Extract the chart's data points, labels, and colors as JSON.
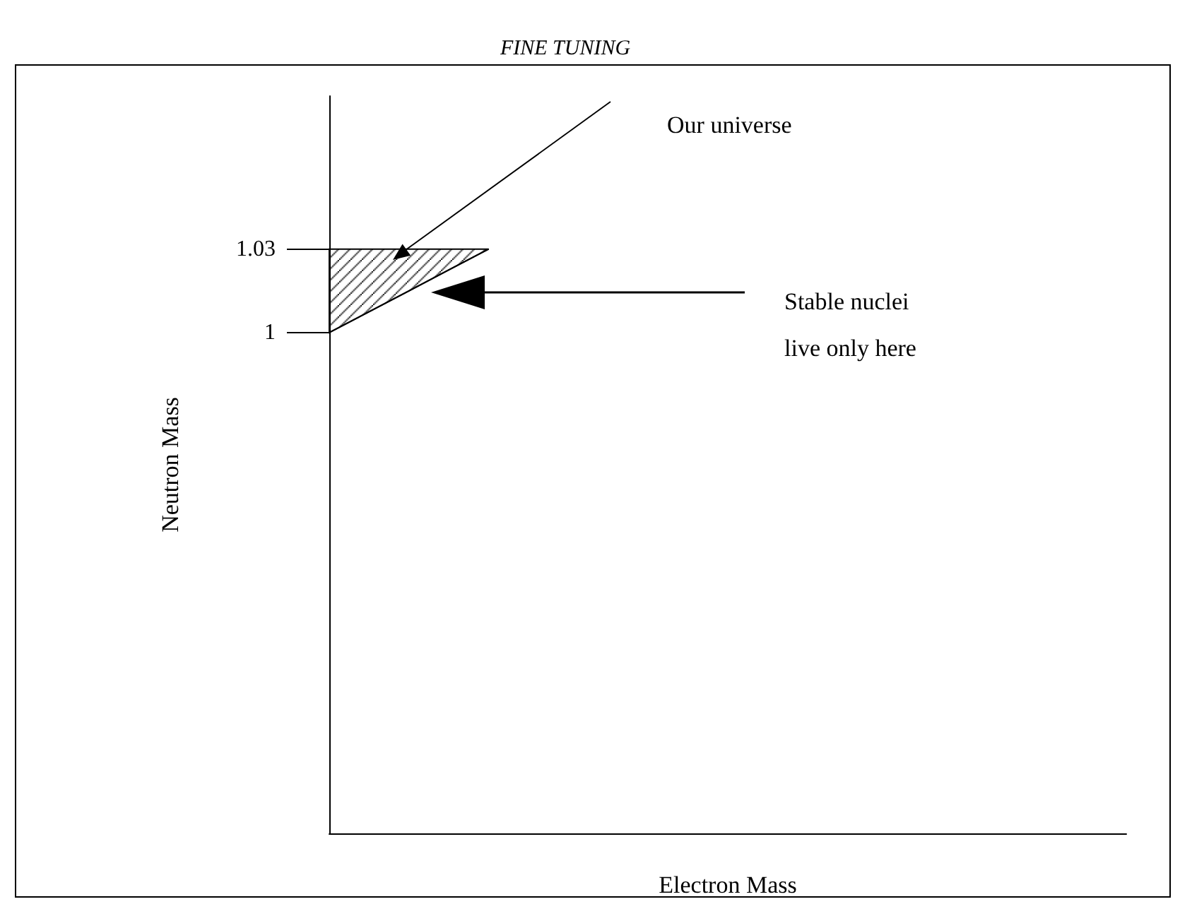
{
  "chart_data": {
    "type": "line",
    "title": "FINE TUNING",
    "xlabel": "Electron Mass",
    "ylabel": "Neutron Mass",
    "categories": [
      null,
      null,
      null,
      null,
      null,
      null,
      null,
      null,
      null,
      null,
      null,
      null,
      null,
      null,
      null,
      null,
      null,
      null,
      null,
      null,
      null
    ],
    "series": [
      {
        "color": "#000000",
        "values": [
          1,
          1.0075,
          1.015,
          1.0225,
          1.03,
          null,
          null,
          null,
          null,
          null,
          null,
          null,
          null,
          null,
          null,
          null,
          null,
          null,
          null,
          null,
          null
        ],
        "lower": [
          1,
          1.0075,
          1.015,
          1.0225,
          1.03,
          null,
          null,
          null,
          null,
          null,
          null,
          null,
          null,
          null,
          null,
          null,
          null,
          null,
          null,
          null,
          null
        ],
        "upper": [
          1.03,
          1.03,
          1.03,
          1.03,
          1.03,
          null,
          null,
          null,
          null,
          null,
          null,
          null,
          null,
          null,
          null,
          null,
          null,
          null,
          null,
          null,
          null
        ]
      }
    ],
    "ylim": [
      0.82,
      1.085
    ],
    "yticks": [
      1,
      1.03
    ],
    "tick_labels": "y",
    "marker": "none",
    "annotations": [
      "Our universe",
      "Stable nuclei\nlive only here"
    ]
  }
}
